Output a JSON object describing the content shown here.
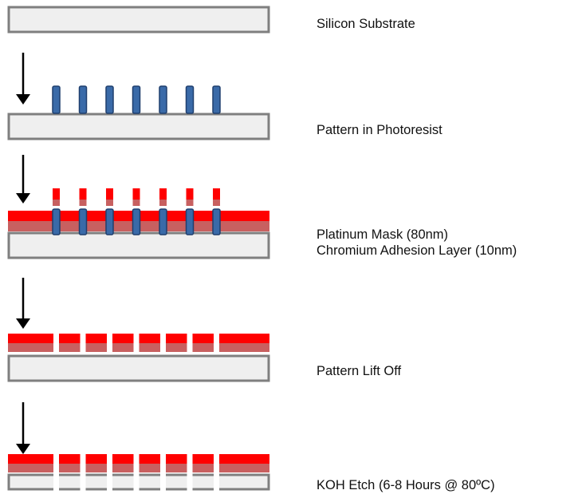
{
  "colors": {
    "substrate_fill": "#efefef",
    "substrate_stroke": "#7f7f7f",
    "photoresist_fill": "#3a6aa8",
    "photoresist_stroke": "#1f3f6e",
    "platinum": "#ff0000",
    "chromium": "#c86060",
    "arrow": "#000000"
  },
  "steps": [
    {
      "name": "silicon-substrate",
      "lines": [
        "Silicon Substrate"
      ],
      "layers": [
        "substrate"
      ],
      "arrow_before": false
    },
    {
      "name": "pattern-in-photoresist",
      "lines": [
        "Pattern in Photoresist"
      ],
      "layers": [
        "substrate",
        "photoresist"
      ],
      "arrow_before": true
    },
    {
      "name": "platinum-chromium-deposition",
      "lines": [
        "Platinum Mask (80nm)",
        "Chromium Adhesion Layer (10nm)"
      ],
      "layers": [
        "substrate",
        "chromium",
        "platinum",
        "photoresist",
        "platinum-caps"
      ],
      "arrow_before": true
    },
    {
      "name": "pattern-lift-off",
      "lines": [
        "Pattern Lift Off"
      ],
      "layers": [
        "substrate",
        "patterned-mask"
      ],
      "arrow_before": true
    },
    {
      "name": "koh-etch",
      "lines": [
        "KOH Etch (6-8 Hours @ 80ºC)"
      ],
      "layers": [
        "etched-substrate",
        "patterned-mask"
      ],
      "arrow_before": true
    }
  ],
  "pillar_count": 7
}
